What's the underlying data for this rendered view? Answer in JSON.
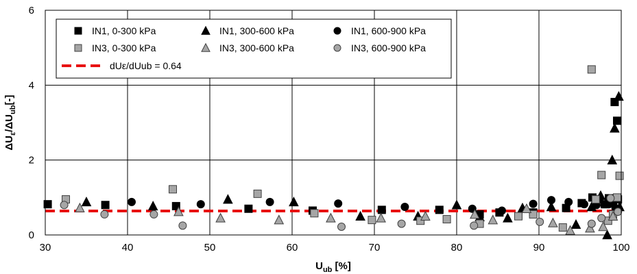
{
  "chart_data": {
    "type": "scatter",
    "xlabel": "U",
    "xlabel_sub": "ub",
    "xlabel_unit": " [%]",
    "ylabel_parts": [
      "ΔU",
      "ε",
      "/ΔU",
      "ub",
      "[-]"
    ],
    "xlim": [
      30,
      100
    ],
    "ylim": [
      0,
      6
    ],
    "x_ticks": [
      30,
      40,
      50,
      60,
      70,
      80,
      90,
      100
    ],
    "y_ticks": [
      0,
      2,
      4,
      6
    ],
    "grid": true,
    "legend_position": "top-left (inside plot)",
    "series": [
      {
        "name": "IN1, 0-300 kPa",
        "marker": "square",
        "color": "#000000",
        "points": [
          [
            30.3,
            0.82
          ],
          [
            37.3,
            0.8
          ],
          [
            45.9,
            0.77
          ],
          [
            54.7,
            0.7
          ],
          [
            62.5,
            0.65
          ],
          [
            70.9,
            0.67
          ],
          [
            77.9,
            0.67
          ],
          [
            82.8,
            0.55
          ],
          [
            85.2,
            0.6
          ],
          [
            89.3,
            0.6
          ],
          [
            93.3,
            0.72
          ],
          [
            95.2,
            0.85
          ],
          [
            96.5,
            1.0
          ],
          [
            97.3,
            0.95
          ],
          [
            98.0,
            0.82
          ],
          [
            98.5,
            0.98
          ],
          [
            99.0,
            0.85
          ],
          [
            99.6,
            0.95
          ],
          [
            99.2,
            3.55
          ],
          [
            99.5,
            3.05
          ]
        ]
      },
      {
        "name": "IN1, 300-600 kPa",
        "marker": "triangle",
        "color": "#000000",
        "points": [
          [
            35.0,
            0.88
          ],
          [
            43.1,
            0.77
          ],
          [
            52.2,
            0.95
          ],
          [
            60.2,
            0.88
          ],
          [
            68.3,
            0.5
          ],
          [
            75.3,
            0.5
          ],
          [
            80.0,
            0.8
          ],
          [
            82.8,
            0.48
          ],
          [
            86.2,
            0.45
          ],
          [
            88.0,
            0.72
          ],
          [
            91.5,
            0.75
          ],
          [
            94.5,
            0.28
          ],
          [
            96.4,
            0.75
          ],
          [
            97.5,
            1.05
          ],
          [
            98.3,
            0.0
          ],
          [
            98.9,
            2.0
          ],
          [
            99.2,
            2.85
          ],
          [
            99.7,
            3.7
          ],
          [
            99.8,
            0.75
          ]
        ]
      },
      {
        "name": "IN1, 600-900 kPa",
        "marker": "circle",
        "color": "#000000",
        "points": [
          [
            40.5,
            0.88
          ],
          [
            48.9,
            0.82
          ],
          [
            57.3,
            0.88
          ],
          [
            65.6,
            0.84
          ],
          [
            73.7,
            0.75
          ],
          [
            81.9,
            0.7
          ],
          [
            85.5,
            0.65
          ],
          [
            89.3,
            0.83
          ],
          [
            91.5,
            0.93
          ],
          [
            93.6,
            0.88
          ],
          [
            95.5,
            0.82
          ],
          [
            97.0,
            0.8
          ],
          [
            98.5,
            0.82
          ],
          [
            99.3,
            0.72
          ]
        ]
      },
      {
        "name": "IN3, 0-300 kPa",
        "marker": "square",
        "color": "#a6a6a6",
        "points": [
          [
            32.5,
            0.95
          ],
          [
            45.5,
            1.22
          ],
          [
            55.8,
            1.1
          ],
          [
            62.7,
            0.58
          ],
          [
            69.7,
            0.4
          ],
          [
            75.6,
            0.38
          ],
          [
            78.8,
            0.42
          ],
          [
            82.8,
            0.3
          ],
          [
            87.5,
            0.5
          ],
          [
            89.3,
            0.55
          ],
          [
            92.9,
            0.2
          ],
          [
            96.4,
            4.42
          ],
          [
            96.9,
            0.95
          ],
          [
            97.6,
            1.6
          ],
          [
            98.4,
            0.38
          ],
          [
            99.0,
            0.55
          ],
          [
            99.8,
            1.58
          ],
          [
            99.5,
            1.0
          ]
        ]
      },
      {
        "name": "IN3, 300-600 kPa",
        "marker": "triangle",
        "color": "#a6a6a6",
        "points": [
          [
            34.2,
            0.72
          ],
          [
            46.2,
            0.62
          ],
          [
            51.3,
            0.45
          ],
          [
            58.4,
            0.4
          ],
          [
            64.7,
            0.45
          ],
          [
            70.8,
            0.45
          ],
          [
            76.2,
            0.5
          ],
          [
            82.2,
            0.55
          ],
          [
            84.4,
            0.4
          ],
          [
            88.5,
            0.7
          ],
          [
            91.7,
            0.32
          ],
          [
            93.8,
            0.12
          ],
          [
            96.2,
            0.18
          ],
          [
            97.8,
            0.22
          ],
          [
            99.0,
            0.5
          ]
        ]
      },
      {
        "name": "IN3, 600-900 kPa",
        "marker": "circle",
        "color": "#a6a6a6",
        "points": [
          [
            32.3,
            0.8
          ],
          [
            37.2,
            0.55
          ],
          [
            43.2,
            0.55
          ],
          [
            46.7,
            0.25
          ],
          [
            66.0,
            0.22
          ],
          [
            73.3,
            0.3
          ],
          [
            82.1,
            0.25
          ],
          [
            90.1,
            0.35
          ],
          [
            96.4,
            0.3
          ],
          [
            97.6,
            0.45
          ],
          [
            98.7,
            0.98
          ],
          [
            99.6,
            0.62
          ]
        ]
      }
    ],
    "reference_line": {
      "name": "dUε/dUub = 0.64",
      "y": 0.64,
      "color": "#e81010",
      "style": "dashed"
    }
  }
}
